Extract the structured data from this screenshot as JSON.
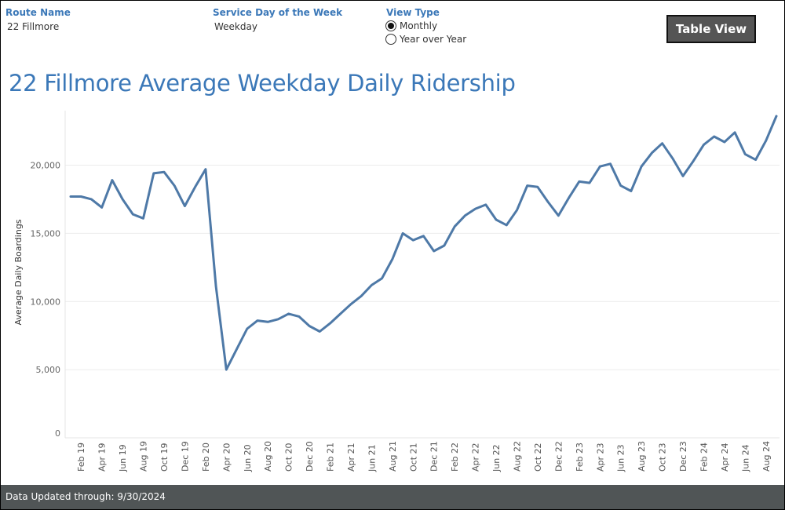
{
  "filters": {
    "route_label": "Route Name",
    "route_value": "22 Fillmore",
    "service_day_label": "Service Day of the Week",
    "service_day_value": "Weekday",
    "view_type_label": "View Type",
    "view_type_options": [
      "Monthly",
      "Year over Year"
    ],
    "view_type_selected": "Monthly"
  },
  "table_view_button": "Table View",
  "footer_text": "Data Updated through: 9/30/2024",
  "chart_data": {
    "type": "line",
    "title": "22 Fillmore Average Weekday Daily Ridership",
    "xlabel": "",
    "ylabel": "Average Daily Boardings",
    "ylim": [
      0,
      24000
    ],
    "y_ticks": [
      0,
      5000,
      10000,
      15000,
      20000
    ],
    "y_tick_labels": [
      "0",
      "5,000",
      "10,000",
      "15,000",
      "20,000"
    ],
    "x_tick_labels": [
      "Feb 19",
      "Apr 19",
      "Jun 19",
      "Aug 19",
      "Oct 19",
      "Dec 19",
      "Feb 20",
      "Apr 20",
      "Jun 20",
      "Aug 20",
      "Oct 20",
      "Dec 20",
      "Feb 21",
      "Apr 21",
      "Jun 21",
      "Aug 21",
      "Oct 21",
      "Dec 21",
      "Feb 22",
      "Apr 22",
      "Jun 22",
      "Aug 22",
      "Oct 22",
      "Dec 22",
      "Feb 23",
      "Apr 23",
      "Jun 23",
      "Aug 23",
      "Oct 23",
      "Dec 23",
      "Feb 24",
      "Apr 24",
      "Jun 24",
      "Aug 24"
    ],
    "x": [
      "Jan 19",
      "Feb 19",
      "Mar 19",
      "Apr 19",
      "May 19",
      "Jun 19",
      "Jul 19",
      "Aug 19",
      "Sep 19",
      "Oct 19",
      "Nov 19",
      "Dec 19",
      "Jan 20",
      "Feb 20",
      "Mar 20",
      "Apr 20",
      "May 20",
      "Jun 20",
      "Jul 20",
      "Aug 20",
      "Sep 20",
      "Oct 20",
      "Nov 20",
      "Dec 20",
      "Jan 21",
      "Feb 21",
      "Mar 21",
      "Apr 21",
      "May 21",
      "Jun 21",
      "Jul 21",
      "Aug 21",
      "Sep 21",
      "Oct 21",
      "Nov 21",
      "Dec 21",
      "Jan 22",
      "Feb 22",
      "Mar 22",
      "Apr 22",
      "May 22",
      "Jun 22",
      "Jul 22",
      "Aug 22",
      "Sep 22",
      "Oct 22",
      "Nov 22",
      "Dec 22",
      "Jan 23",
      "Feb 23",
      "Mar 23",
      "Apr 23",
      "May 23",
      "Jun 23",
      "Jul 23",
      "Aug 23",
      "Sep 23",
      "Oct 23",
      "Nov 23",
      "Dec 23",
      "Jan 24",
      "Feb 24",
      "Mar 24",
      "Apr 24",
      "May 24",
      "Jun 24",
      "Jul 24",
      "Aug 24",
      "Sep 24"
    ],
    "series": [
      {
        "values": [
          17700,
          17700,
          17500,
          16900,
          18900,
          17500,
          16400,
          16100,
          19400,
          19500,
          18500,
          17000,
          18400,
          19700,
          11100,
          5000,
          6500,
          8000,
          8600,
          8500,
          8700,
          9100,
          8900,
          8200,
          7800,
          8400,
          9100,
          9800,
          10400,
          11200,
          11700,
          13100,
          15000,
          14500,
          14800,
          13700,
          14100,
          15500,
          16300,
          16800,
          17100,
          16000,
          15600,
          16700,
          18500,
          18400,
          17300,
          16300,
          17600,
          18800,
          18700,
          19900,
          20100,
          18500,
          18100,
          19900,
          20900,
          21600,
          20500,
          19200,
          20300,
          21500,
          22100,
          21700,
          22400,
          20800,
          20400,
          21800,
          23600
        ]
      }
    ],
    "line_color": "#4e79a7",
    "grid": true,
    "legend": "none"
  }
}
